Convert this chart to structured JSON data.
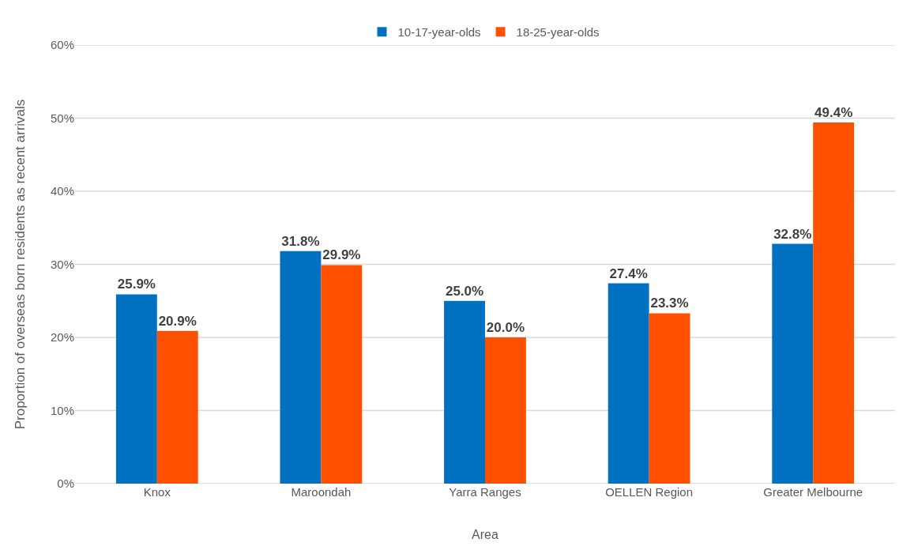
{
  "chart_data": {
    "type": "bar",
    "xlabel": "Area",
    "ylabel": "Proportion of overseas born residents as recent arrivals",
    "categories": [
      "Knox",
      "Maroondah",
      "Yarra Ranges",
      "OELLEN Region",
      "Greater Melbourne"
    ],
    "series": [
      {
        "name": "10-17-year-olds",
        "color": "#0070c0",
        "values": [
          25.9,
          31.8,
          25.0,
          27.4,
          32.8
        ],
        "value_labels": [
          "25.9%",
          "31.8%",
          "25.0%",
          "27.4%",
          "32.8%"
        ]
      },
      {
        "name": "18-25-year-olds",
        "color": "#ff5000",
        "values": [
          20.9,
          29.9,
          20.0,
          23.3,
          49.4
        ],
        "value_labels": [
          "20.9%",
          "29.9%",
          "20.0%",
          "23.3%",
          "49.4%"
        ]
      }
    ],
    "ylim": [
      0,
      60
    ],
    "yticks": [
      {
        "value": 0,
        "label": "0%"
      },
      {
        "value": 10,
        "label": "10%"
      },
      {
        "value": 20,
        "label": "20%"
      },
      {
        "value": 30,
        "label": "30%"
      },
      {
        "value": 40,
        "label": "40%"
      },
      {
        "value": 50,
        "label": "50%"
      },
      {
        "value": 60,
        "label": "60%"
      }
    ],
    "grid": "y",
    "legend": "top"
  }
}
